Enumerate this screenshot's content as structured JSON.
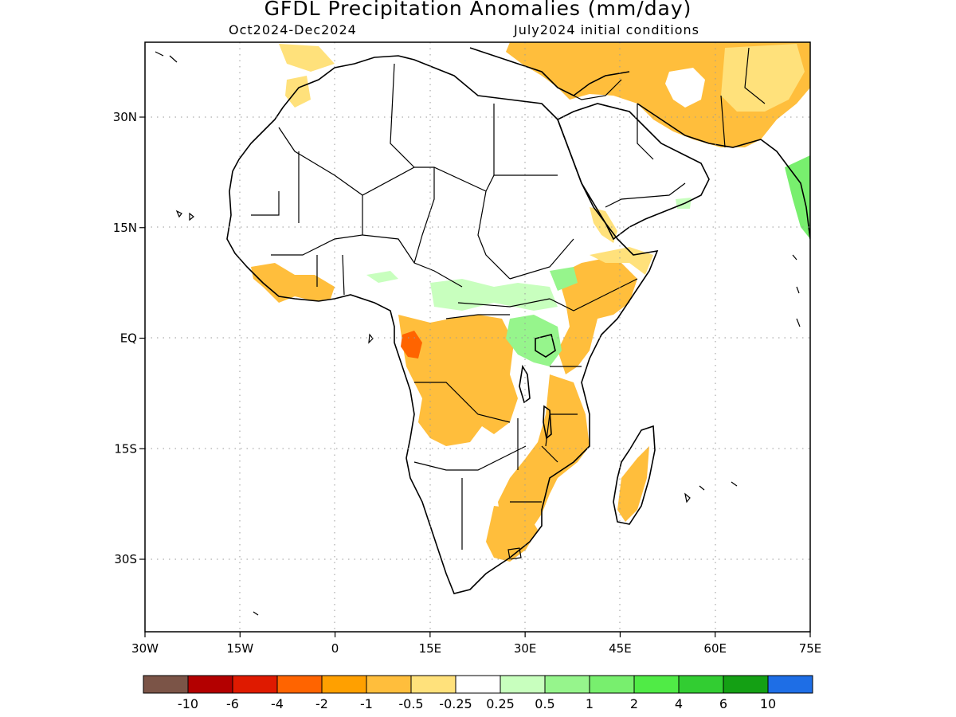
{
  "title": "GFDL Precipitation Anomalies (mm/day)",
  "period": "Oct2024-Dec2024",
  "initial_conditions": "July2024 initial conditions",
  "axes": {
    "x_ticks": [
      "30W",
      "15W",
      "0",
      "15E",
      "30E",
      "45E",
      "60E",
      "75E"
    ],
    "y_ticks": [
      "30N",
      "15N",
      "EQ",
      "15S",
      "30S"
    ]
  },
  "colorbar": {
    "colors": [
      "#7b5447",
      "#b30000",
      "#df1a00",
      "#ff6400",
      "#ffa000",
      "#ffbe3c",
      "#ffe17b",
      "#ffffff",
      "#c8ffbe",
      "#96f58c",
      "#78ef6e",
      "#50eb46",
      "#32cd32",
      "#14a014",
      "#1e6ee6"
    ],
    "labels": [
      "-10",
      "-6",
      "-4",
      "-2",
      "-1",
      "-0.5",
      "-0.25",
      "0.25",
      "0.5",
      "1",
      "2",
      "4",
      "6",
      "10"
    ]
  }
}
